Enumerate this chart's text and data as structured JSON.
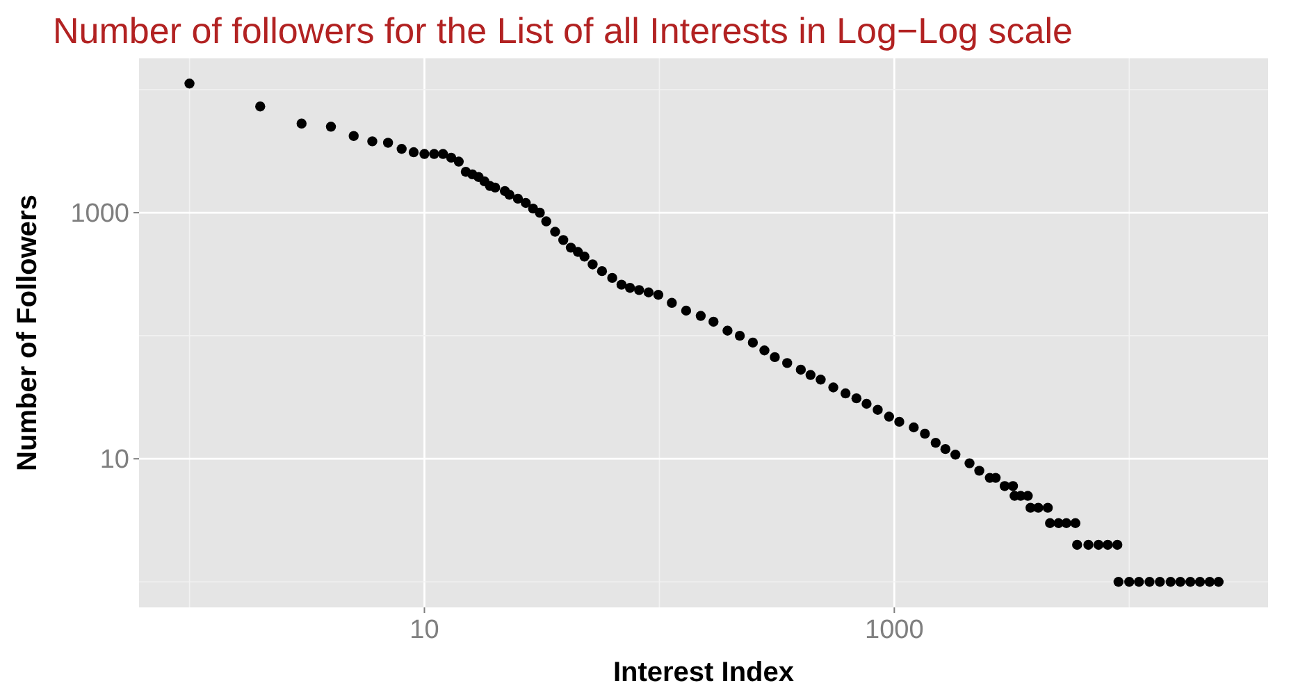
{
  "chart_data": {
    "type": "scatter",
    "title": "Number of followers for the List of all Interests in Log−Log scale",
    "xlabel": "Interest Index",
    "ylabel": "Number of Followers",
    "log": "xy",
    "grid": true,
    "marker": "circle",
    "color": "#000000",
    "xlim": [
      0.61,
      39000
    ],
    "ylim": [
      0.62,
      17950
    ],
    "xticks": [
      {
        "value": 1,
        "label": null
      },
      10,
      {
        "value": 100,
        "label": null
      },
      1000,
      {
        "value": 10000,
        "label": null
      }
    ],
    "yticks": [
      {
        "value": 1,
        "label": null
      },
      10,
      {
        "value": 100,
        "label": null
      },
      1000,
      {
        "value": 10000,
        "label": null
      }
    ],
    "x": [
      1,
      2,
      3,
      4,
      5,
      6,
      7,
      8,
      9,
      10,
      11,
      12,
      13,
      14,
      15,
      16,
      17,
      18,
      19,
      20,
      22,
      23,
      25,
      27,
      29,
      31,
      33,
      36,
      39,
      42,
      45,
      48,
      52,
      57,
      63,
      69,
      75,
      82,
      90,
      99,
      113,
      130,
      150,
      170,
      195,
      220,
      250,
      280,
      310,
      350,
      400,
      440,
      486,
      550,
      620,
      690,
      762,
      850,
      950,
      1050,
      1210,
      1350,
      1500,
      1650,
      1820,
      2090,
      2300,
      2550,
      2700,
      2950,
      3200,
      3250,
      3450,
      3700,
      3800,
      4100,
      4500,
      4600,
      5000,
      5400,
      5900,
      6000,
      6700,
      7400,
      8100,
      8900,
      9000,
      10000,
      11000,
      12200,
      13500,
      15000,
      16500,
      18200,
      20000,
      22000,
      24000
    ],
    "values": [
      11200,
      7300,
      5300,
      5000,
      4200,
      3800,
      3700,
      3300,
      3100,
      3000,
      3000,
      3000,
      2800,
      2600,
      2150,
      2050,
      1950,
      1800,
      1650,
      1600,
      1500,
      1400,
      1300,
      1200,
      1080,
      1000,
      850,
      700,
      600,
      520,
      480,
      440,
      380,
      335,
      295,
      260,
      245,
      235,
      225,
      215,
      185,
      160,
      145,
      130,
      110,
      100,
      88,
      76,
      67,
      60,
      53,
      48,
      44,
      38,
      34,
      31,
      28,
      25,
      22,
      20,
      18,
      16,
      13.5,
      12,
      10.8,
      9.2,
      8,
      7,
      7,
      6,
      6,
      5,
      5,
      5,
      4,
      4,
      4,
      3,
      3,
      3,
      3,
      2,
      2,
      2,
      2,
      2,
      1,
      1,
      1,
      1,
      1,
      1,
      1,
      1,
      1,
      1,
      1
    ]
  }
}
